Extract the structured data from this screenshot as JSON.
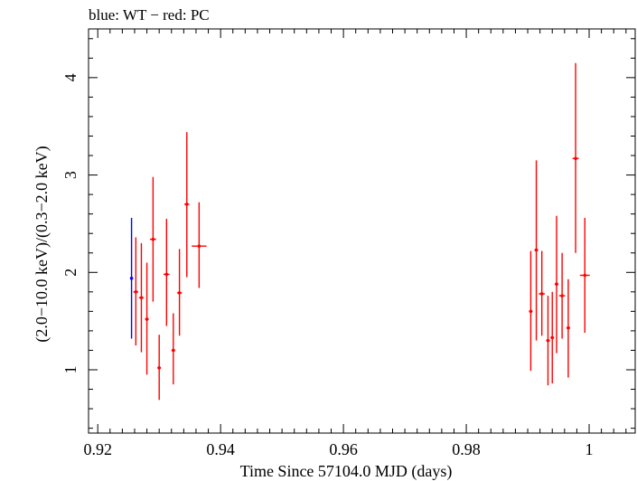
{
  "chart_data": {
    "type": "scatter",
    "title": "blue: WT − red: PC",
    "xlabel": "Time Since 57104.0 MJD (days)",
    "ylabel": "(2.0−10.0 keV)/(0.3−2.0 keV)",
    "xlim": [
      0.9185,
      1.0075
    ],
    "ylim": [
      0.35,
      4.5
    ],
    "x_ticks": [
      0.92,
      0.94,
      0.96,
      0.98,
      1.0
    ],
    "x_tick_labels": [
      "0.92",
      "0.94",
      "0.96",
      "0.98",
      "1"
    ],
    "y_ticks": [
      1,
      2,
      3,
      4
    ],
    "y_tick_labels": [
      "1",
      "2",
      "3",
      "4"
    ],
    "grid": false,
    "colors": {
      "WT": "#0000ff",
      "PC": "#ff0000",
      "axes": "#000000"
    },
    "series": [
      {
        "name": "WT",
        "color": "#0000ff",
        "points": [
          {
            "x": 0.9255,
            "xerr": 0.0001,
            "y": 1.94,
            "ylo": 1.32,
            "yhi": 2.56
          }
        ]
      },
      {
        "name": "PC",
        "color": "#ff0000",
        "points": [
          {
            "x": 0.9262,
            "xerr": 0.0004,
            "y": 1.8,
            "ylo": 1.25,
            "yhi": 2.36
          },
          {
            "x": 0.9271,
            "xerr": 0.0004,
            "y": 1.74,
            "ylo": 1.18,
            "yhi": 2.3
          },
          {
            "x": 0.928,
            "xerr": 0.0003,
            "y": 1.52,
            "ylo": 0.95,
            "yhi": 2.1
          },
          {
            "x": 0.929,
            "xerr": 0.0005,
            "y": 2.34,
            "ylo": 1.7,
            "yhi": 2.98
          },
          {
            "x": 0.93,
            "xerr": 0.0003,
            "y": 1.02,
            "ylo": 0.69,
            "yhi": 1.36
          },
          {
            "x": 0.9312,
            "xerr": 0.0005,
            "y": 1.98,
            "ylo": 1.45,
            "yhi": 2.55
          },
          {
            "x": 0.9323,
            "xerr": 0.0003,
            "y": 1.2,
            "ylo": 0.85,
            "yhi": 1.58
          },
          {
            "x": 0.9333,
            "xerr": 0.0004,
            "y": 1.79,
            "ylo": 1.35,
            "yhi": 2.24
          },
          {
            "x": 0.9345,
            "xerr": 0.0004,
            "y": 2.7,
            "ylo": 1.95,
            "yhi": 3.44
          },
          {
            "x": 0.9365,
            "xerr": 0.0012,
            "y": 2.27,
            "ylo": 1.84,
            "yhi": 2.72
          },
          {
            "x": 0.9905,
            "xerr": 0.0003,
            "y": 1.6,
            "ylo": 0.99,
            "yhi": 2.22
          },
          {
            "x": 0.9914,
            "xerr": 0.0003,
            "y": 2.23,
            "ylo": 1.3,
            "yhi": 3.15
          },
          {
            "x": 0.9923,
            "xerr": 0.0005,
            "y": 1.78,
            "ylo": 1.35,
            "yhi": 2.22
          },
          {
            "x": 0.9933,
            "xerr": 0.0003,
            "y": 1.3,
            "ylo": 0.84,
            "yhi": 1.76
          },
          {
            "x": 0.994,
            "xerr": 0.0003,
            "y": 1.33,
            "ylo": 0.86,
            "yhi": 1.8
          },
          {
            "x": 0.9947,
            "xerr": 0.0003,
            "y": 1.88,
            "ylo": 1.17,
            "yhi": 2.58
          },
          {
            "x": 0.9956,
            "xerr": 0.0005,
            "y": 1.76,
            "ylo": 1.32,
            "yhi": 2.2
          },
          {
            "x": 0.9966,
            "xerr": 0.0003,
            "y": 1.43,
            "ylo": 0.92,
            "yhi": 1.93
          },
          {
            "x": 0.9978,
            "xerr": 0.0005,
            "y": 3.17,
            "ylo": 2.2,
            "yhi": 4.15
          },
          {
            "x": 0.9993,
            "xerr": 0.0008,
            "y": 1.97,
            "ylo": 1.38,
            "yhi": 2.56
          }
        ]
      }
    ]
  }
}
